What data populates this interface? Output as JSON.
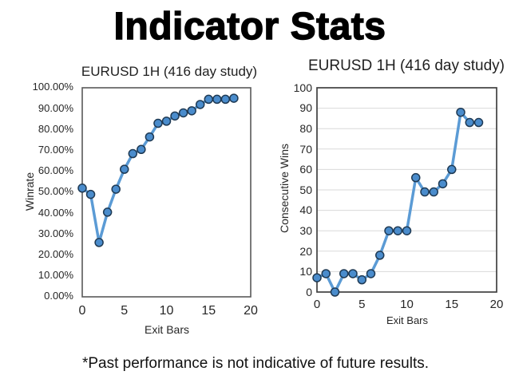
{
  "page": {
    "title": "Indicator Stats",
    "disclaimer": "*Past performance is not indicative of future results.",
    "background": "#ffffff"
  },
  "colors": {
    "line": "#5b9bd5",
    "marker_fill": "#4a8ccc",
    "marker_border": "#1f3a54",
    "gridline": "#d9d9d9",
    "axis_text": "#262626",
    "plot_border_left_chart": "#595959",
    "plot_border_right_chart": "#404040"
  },
  "chart_data": [
    {
      "type": "line",
      "title": "EURUSD 1H (416 day study)",
      "xlabel": "Exit Bars",
      "ylabel": "Winrate",
      "legend": "none",
      "grid": false,
      "marker": "circle",
      "xlim": [
        0,
        20
      ],
      "ylim": [
        0,
        100
      ],
      "x": [
        0,
        1,
        2,
        3,
        4,
        5,
        6,
        7,
        8,
        9,
        10,
        11,
        12,
        13,
        14,
        15,
        16,
        17,
        18
      ],
      "values": [
        52,
        49,
        26,
        40.5,
        51.5,
        61,
        68.5,
        70.5,
        76.5,
        83,
        84,
        86.5,
        88,
        89,
        92,
        94.5,
        94.5,
        94.5,
        95
      ],
      "x_tick_values": [
        0,
        5,
        10,
        15,
        20
      ],
      "x_tick_labels": [
        "0",
        "5",
        "10",
        "15",
        "20"
      ],
      "y_tick_values": [
        0,
        10,
        20,
        30,
        40,
        50,
        60,
        70,
        80,
        90,
        100
      ],
      "y_tick_labels": [
        "0.00%",
        "10.00%",
        "20.00%",
        "30.00%",
        "40.00%",
        "50.00%",
        "60.00%",
        "70.00%",
        "80.00%",
        "90.00%",
        "100.00%"
      ]
    },
    {
      "type": "line",
      "title": "EURUSD 1H (416 day study)",
      "xlabel": "Exit Bars",
      "ylabel": "Consecutive Wins",
      "legend": "none",
      "grid": true,
      "marker": "circle",
      "xlim": [
        0,
        20
      ],
      "ylim": [
        0,
        100
      ],
      "x": [
        0,
        1,
        2,
        3,
        4,
        5,
        6,
        7,
        8,
        9,
        10,
        11,
        12,
        13,
        14,
        15,
        16,
        17,
        18
      ],
      "values": [
        7,
        9,
        0,
        9,
        9,
        6,
        9,
        18,
        30,
        30,
        30,
        56,
        49,
        49,
        53,
        60,
        88,
        83,
        83
      ],
      "x_tick_values": [
        0,
        5,
        10,
        15,
        20
      ],
      "x_tick_labels": [
        "0",
        "5",
        "10",
        "15",
        "20"
      ],
      "y_tick_values": [
        0,
        10,
        20,
        30,
        40,
        50,
        60,
        70,
        80,
        90,
        100
      ],
      "y_tick_labels": [
        "0",
        "10",
        "20",
        "30",
        "40",
        "50",
        "60",
        "70",
        "80",
        "90",
        "100"
      ]
    }
  ]
}
